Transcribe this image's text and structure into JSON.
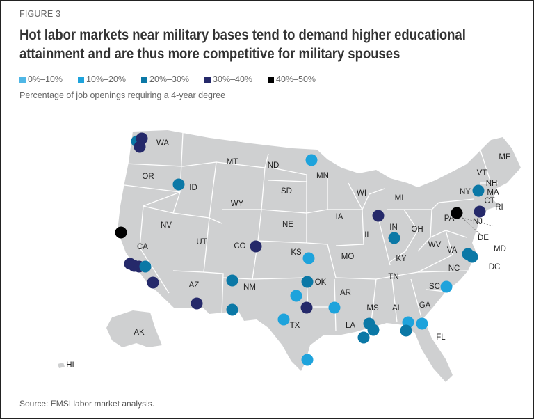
{
  "figure_label": "FIGURE 3",
  "title_line1": "Hot labor markets near military bases tend to demand higher educational",
  "title_line2": "attainment and are thus more competitive for military spouses",
  "legend": [
    {
      "label": "0%–10%",
      "color": "#4fb7e6"
    },
    {
      "label": "10%–20%",
      "color": "#1ea3dc"
    },
    {
      "label": "20%–30%",
      "color": "#0b78a6"
    },
    {
      "label": "30%–40%",
      "color": "#25296a"
    },
    {
      "label": "40%–50%",
      "color": "#000000"
    }
  ],
  "subtitle": "Percentage of job openings requiring a 4-year degree",
  "source": "Source: EMSI labor market analysis.",
  "map_colors": {
    "land": "#cfd0d1",
    "borders": "#ffffff"
  },
  "state_labels": [
    "WA",
    "OR",
    "ID",
    "MT",
    "ND",
    "MN",
    "WI",
    "MI",
    "SD",
    "WY",
    "NV",
    "UT",
    "CA",
    "CO",
    "NE",
    "IA",
    "IL",
    "IN",
    "OH",
    "KS",
    "MO",
    "KY",
    "WV",
    "VA",
    "NC",
    "TN",
    "OK",
    "AR",
    "AZ",
    "NM",
    "TX",
    "LA",
    "MS",
    "AL",
    "GA",
    "SC",
    "FL",
    "AK",
    "HI",
    "ME",
    "VT",
    "NH",
    "NY",
    "MA",
    "CT",
    "RI",
    "PA",
    "NJ",
    "DE",
    "MD",
    "DC"
  ],
  "bases": [
    {
      "state": "WA",
      "category": 2
    },
    {
      "state": "WA",
      "category": 3
    },
    {
      "state": "WA",
      "category": 3
    },
    {
      "state": "ID",
      "category": 2
    },
    {
      "state": "ND",
      "category": 1
    },
    {
      "state": "CA",
      "category": 4
    },
    {
      "state": "CA",
      "category": 3
    },
    {
      "state": "CA",
      "category": 3
    },
    {
      "state": "CA",
      "category": 3
    },
    {
      "state": "CA",
      "category": 2
    },
    {
      "state": "CA",
      "category": 3
    },
    {
      "state": "AZ",
      "category": 3
    },
    {
      "state": "NM",
      "category": 2
    },
    {
      "state": "NM",
      "category": 2
    },
    {
      "state": "CO",
      "category": 3
    },
    {
      "state": "KS",
      "category": 1
    },
    {
      "state": "OK",
      "category": 2
    },
    {
      "state": "TX",
      "category": 1
    },
    {
      "state": "TX",
      "category": 3
    },
    {
      "state": "TX",
      "category": 1
    },
    {
      "state": "TX",
      "category": 1
    },
    {
      "state": "LA",
      "category": 1
    },
    {
      "state": "MS",
      "category": 2
    },
    {
      "state": "MS",
      "category": 2
    },
    {
      "state": "MS",
      "category": 2
    },
    {
      "state": "FL",
      "category": 1
    },
    {
      "state": "FL",
      "category": 2
    },
    {
      "state": "GA",
      "category": 1
    },
    {
      "state": "SC",
      "category": 1
    },
    {
      "state": "IL",
      "category": 3
    },
    {
      "state": "IN",
      "category": 2
    },
    {
      "state": "NY",
      "category": 2
    },
    {
      "state": "PA",
      "category": 4
    },
    {
      "state": "NJ",
      "category": 3
    },
    {
      "state": "VA",
      "category": 2
    },
    {
      "state": "VA",
      "category": 2
    }
  ]
}
